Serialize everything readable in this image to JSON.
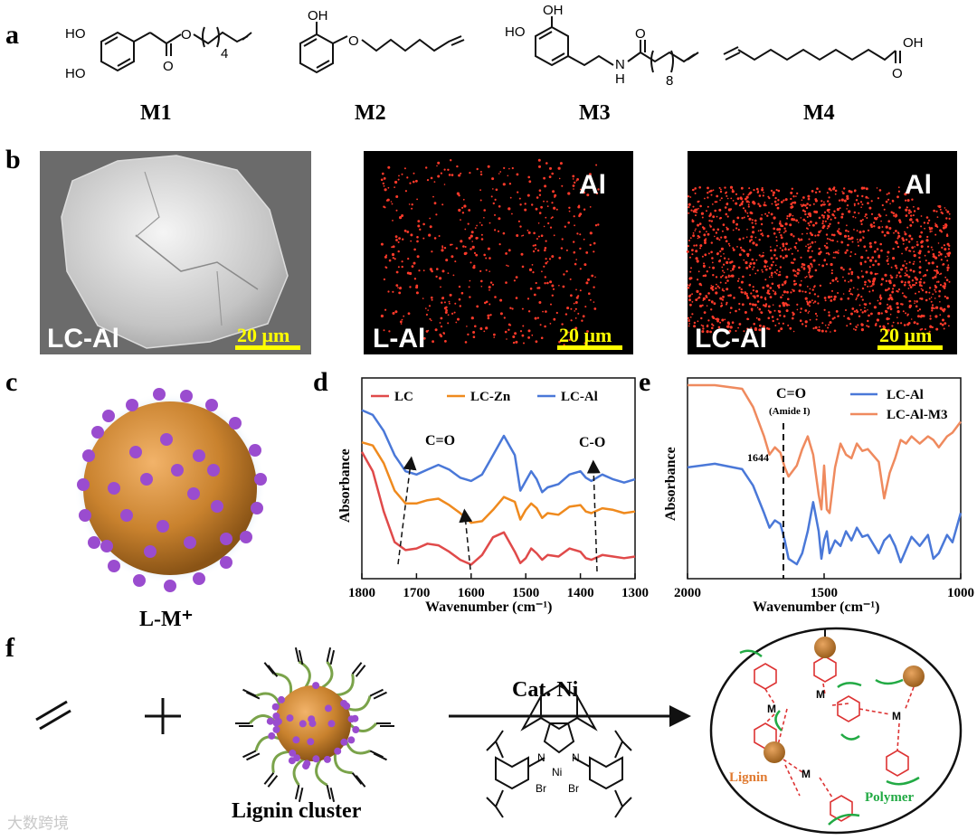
{
  "panel_labels": {
    "a": "a",
    "b": "b",
    "c": "c",
    "d": "d",
    "e": "e",
    "f": "f"
  },
  "panel_a": {
    "molecules": [
      {
        "label": "M1",
        "groups": [
          "HO",
          "HO",
          "O",
          "O",
          "4"
        ]
      },
      {
        "label": "M2",
        "groups": [
          "OH",
          "O"
        ]
      },
      {
        "label": "M3",
        "groups": [
          "OH",
          "HO",
          "O",
          "N",
          "H",
          "8"
        ]
      },
      {
        "label": "M4",
        "groups": [
          "OH",
          "O"
        ]
      }
    ]
  },
  "panel_b": {
    "images": [
      {
        "label": "LC-Al",
        "scale_bar": "20 μm",
        "element": ""
      },
      {
        "label": "L-Al",
        "scale_bar": "20 μm",
        "element": "Al"
      },
      {
        "label": "LC-Al",
        "scale_bar": "20 μm",
        "element": "Al"
      }
    ]
  },
  "panel_c": {
    "label": "L-M⁺"
  },
  "panel_d": {
    "ylabel": "Absorbance",
    "xlabel": "Wavenumber (cm⁻¹)",
    "xticks": [
      "1800",
      "1700",
      "1600",
      "1500",
      "1400",
      "1300"
    ],
    "annotations": [
      "C=O",
      "C-O"
    ],
    "legend": [
      "LC",
      "LC-Zn",
      "LC-Al"
    ]
  },
  "panel_e": {
    "ylabel": "Absorbance",
    "xlabel": "Wavenumber (cm⁻¹)",
    "xticks": [
      "2000",
      "1500",
      "1000"
    ],
    "annotation_title": "C=O",
    "annotation_sub": "(Amide I)",
    "peak_label": "1644",
    "legend": [
      "LC-Al",
      "LC-Al-M3"
    ]
  },
  "panel_f": {
    "reagent_label": "Cat. Ni",
    "cluster_label": "Lignin cluster",
    "catalyst_atoms": [
      "N",
      "N",
      "Ni",
      "Br",
      "Br"
    ],
    "product_labels": {
      "lignin": "Lignin",
      "polymer": "Polymer",
      "metal": "M"
    }
  },
  "watermark": "大数跨境",
  "chart_data": [
    {
      "type": "line",
      "title": "",
      "xlabel": "Wavenumber (cm⁻¹)",
      "ylabel": "Absorbance",
      "xlim": [
        1800,
        1300
      ],
      "series": [
        {
          "name": "LC",
          "color": "#e04a4a",
          "x": [
            1800,
            1780,
            1760,
            1740,
            1720,
            1700,
            1680,
            1660,
            1640,
            1620,
            1600,
            1580,
            1560,
            1540,
            1520,
            1510,
            1500,
            1490,
            1480,
            1470,
            1460,
            1440,
            1420,
            1400,
            1390,
            1380,
            1360,
            1340,
            1320,
            1300
          ],
          "y": [
            0.72,
            0.6,
            0.35,
            0.16,
            0.11,
            0.12,
            0.15,
            0.14,
            0.1,
            0.05,
            0.02,
            0.08,
            0.19,
            0.22,
            0.1,
            0.03,
            0.06,
            0.12,
            0.09,
            0.05,
            0.08,
            0.07,
            0.12,
            0.1,
            0.06,
            0.05,
            0.08,
            0.07,
            0.06,
            0.07
          ]
        },
        {
          "name": "LC-Zn",
          "color": "#ef8a1e",
          "x": [
            1800,
            1780,
            1760,
            1740,
            1720,
            1700,
            1680,
            1660,
            1640,
            1620,
            1600,
            1580,
            1560,
            1540,
            1520,
            1510,
            1500,
            1490,
            1480,
            1470,
            1460,
            1440,
            1420,
            1400,
            1390,
            1380,
            1360,
            1340,
            1320,
            1300
          ],
          "y": [
            0.78,
            0.76,
            0.65,
            0.48,
            0.4,
            0.4,
            0.42,
            0.43,
            0.39,
            0.34,
            0.28,
            0.29,
            0.36,
            0.44,
            0.41,
            0.3,
            0.36,
            0.4,
            0.37,
            0.31,
            0.34,
            0.33,
            0.38,
            0.39,
            0.35,
            0.34,
            0.37,
            0.36,
            0.34,
            0.35
          ]
        },
        {
          "name": "LC-Al",
          "color": "#4a78d8",
          "x": [
            1800,
            1780,
            1760,
            1740,
            1720,
            1700,
            1680,
            1660,
            1640,
            1620,
            1600,
            1580,
            1560,
            1540,
            1520,
            1510,
            1500,
            1490,
            1480,
            1470,
            1460,
            1440,
            1420,
            1400,
            1390,
            1380,
            1360,
            1340,
            1320,
            1300
          ],
          "y": [
            0.98,
            0.95,
            0.85,
            0.7,
            0.6,
            0.58,
            0.61,
            0.64,
            0.61,
            0.56,
            0.54,
            0.58,
            0.7,
            0.82,
            0.7,
            0.48,
            0.54,
            0.6,
            0.55,
            0.47,
            0.5,
            0.52,
            0.58,
            0.6,
            0.56,
            0.54,
            0.58,
            0.55,
            0.53,
            0.55
          ]
        }
      ]
    },
    {
      "type": "line",
      "title": "",
      "xlabel": "Wavenumber (cm⁻¹)",
      "ylabel": "Absorbance",
      "xlim": [
        2000,
        1000
      ],
      "series": [
        {
          "name": "LC-Al",
          "color": "#4a78d8",
          "x": [
            2000,
            1900,
            1800,
            1760,
            1720,
            1700,
            1680,
            1660,
            1644,
            1630,
            1600,
            1580,
            1560,
            1540,
            1520,
            1510,
            1500,
            1490,
            1480,
            1460,
            1440,
            1420,
            1400,
            1380,
            1360,
            1340,
            1300,
            1280,
            1260,
            1240,
            1220,
            1200,
            1180,
            1150,
            1120,
            1100,
            1080,
            1050,
            1030,
            1000
          ],
          "y": [
            0.55,
            0.57,
            0.54,
            0.45,
            0.3,
            0.22,
            0.26,
            0.24,
            0.15,
            0.05,
            0.02,
            0.08,
            0.2,
            0.36,
            0.2,
            0.05,
            0.15,
            0.2,
            0.08,
            0.15,
            0.12,
            0.2,
            0.15,
            0.22,
            0.17,
            0.18,
            0.08,
            0.15,
            0.18,
            0.12,
            0.03,
            0.1,
            0.17,
            0.12,
            0.18,
            0.05,
            0.08,
            0.18,
            0.14,
            0.3
          ]
        },
        {
          "name": "LC-Al-M3",
          "color": "#ef8a5e",
          "x": [
            2000,
            1900,
            1800,
            1760,
            1720,
            1700,
            1680,
            1660,
            1644,
            1630,
            1600,
            1580,
            1560,
            1540,
            1520,
            1510,
            1500,
            1490,
            1480,
            1460,
            1440,
            1420,
            1400,
            1380,
            1360,
            1340,
            1300,
            1280,
            1260,
            1240,
            1220,
            1200,
            1180,
            1150,
            1120,
            1100,
            1080,
            1050,
            1030,
            1000
          ],
          "y": [
            1.0,
            1.0,
            0.98,
            0.88,
            0.72,
            0.62,
            0.66,
            0.63,
            0.55,
            0.5,
            0.56,
            0.65,
            0.72,
            0.62,
            0.4,
            0.32,
            0.56,
            0.32,
            0.3,
            0.55,
            0.68,
            0.62,
            0.6,
            0.68,
            0.64,
            0.65,
            0.58,
            0.38,
            0.52,
            0.6,
            0.7,
            0.68,
            0.72,
            0.68,
            0.72,
            0.7,
            0.66,
            0.72,
            0.74,
            0.8
          ]
        }
      ]
    }
  ]
}
